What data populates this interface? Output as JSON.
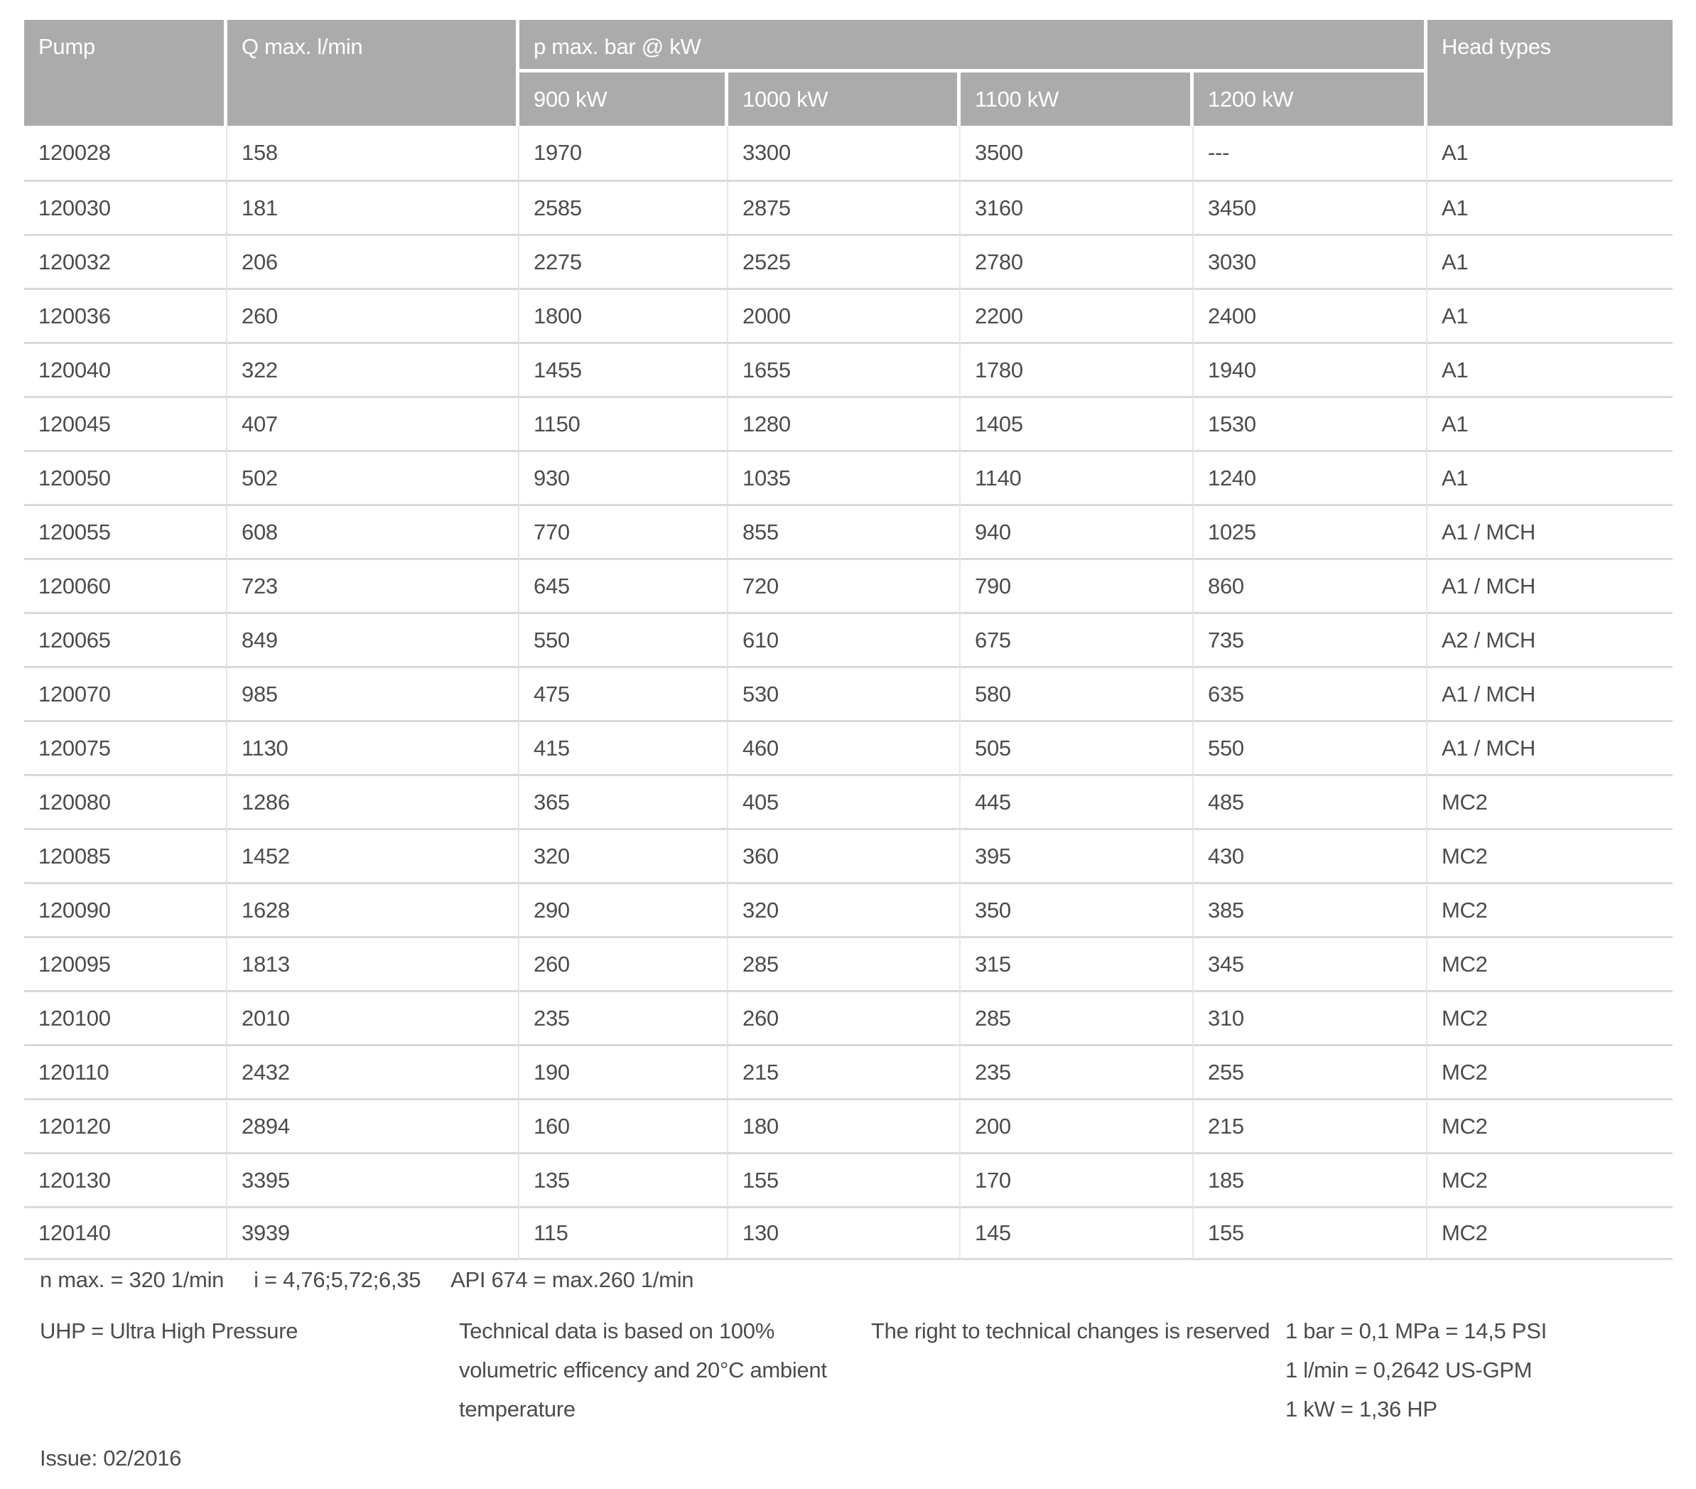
{
  "table": {
    "headers": {
      "pump": "Pump",
      "q_max": "Q max. l/min",
      "p_max_group": "p max. bar @ kW",
      "kw_columns": [
        "900 kW",
        "1000 kW",
        "1100 kW",
        "1200 kW"
      ],
      "head_types": "Head types"
    },
    "rows": [
      {
        "pump": "120028",
        "q": "158",
        "p900": "1970",
        "p1000": "3300",
        "p1100": "3500",
        "p1200": "---",
        "head": "A1"
      },
      {
        "pump": "120030",
        "q": "181",
        "p900": "2585",
        "p1000": "2875",
        "p1100": "3160",
        "p1200": "3450",
        "head": "A1"
      },
      {
        "pump": "120032",
        "q": "206",
        "p900": "2275",
        "p1000": "2525",
        "p1100": "2780",
        "p1200": "3030",
        "head": "A1"
      },
      {
        "pump": "120036",
        "q": "260",
        "p900": "1800",
        "p1000": "2000",
        "p1100": "2200",
        "p1200": "2400",
        "head": "A1"
      },
      {
        "pump": "120040",
        "q": "322",
        "p900": "1455",
        "p1000": "1655",
        "p1100": "1780",
        "p1200": "1940",
        "head": "A1"
      },
      {
        "pump": "120045",
        "q": "407",
        "p900": "1150",
        "p1000": "1280",
        "p1100": "1405",
        "p1200": "1530",
        "head": "A1"
      },
      {
        "pump": "120050",
        "q": "502",
        "p900": "930",
        "p1000": "1035",
        "p1100": "1140",
        "p1200": "1240",
        "head": "A1"
      },
      {
        "pump": "120055",
        "q": "608",
        "p900": "770",
        "p1000": "855",
        "p1100": "940",
        "p1200": "1025",
        "head": "A1 / MCH"
      },
      {
        "pump": "120060",
        "q": "723",
        "p900": "645",
        "p1000": "720",
        "p1100": "790",
        "p1200": "860",
        "head": "A1 / MCH"
      },
      {
        "pump": "120065",
        "q": "849",
        "p900": "550",
        "p1000": "610",
        "p1100": "675",
        "p1200": "735",
        "head": "A2 / MCH"
      },
      {
        "pump": "120070",
        "q": "985",
        "p900": "475",
        "p1000": "530",
        "p1100": "580",
        "p1200": "635",
        "head": "A1 / MCH"
      },
      {
        "pump": "120075",
        "q": "1130",
        "p900": "415",
        "p1000": "460",
        "p1100": "505",
        "p1200": "550",
        "head": "A1 / MCH"
      },
      {
        "pump": "120080",
        "q": "1286",
        "p900": "365",
        "p1000": "405",
        "p1100": "445",
        "p1200": "485",
        "head": "MC2"
      },
      {
        "pump": "120085",
        "q": "1452",
        "p900": "320",
        "p1000": "360",
        "p1100": "395",
        "p1200": "430",
        "head": "MC2"
      },
      {
        "pump": "120090",
        "q": "1628",
        "p900": "290",
        "p1000": "320",
        "p1100": "350",
        "p1200": "385",
        "head": "MC2"
      },
      {
        "pump": "120095",
        "q": "1813",
        "p900": "260",
        "p1000": "285",
        "p1100": "315",
        "p1200": "345",
        "head": "MC2"
      },
      {
        "pump": "120100",
        "q": "2010",
        "p900": "235",
        "p1000": "260",
        "p1100": "285",
        "p1200": "310",
        "head": "MC2"
      },
      {
        "pump": "120110",
        "q": "2432",
        "p900": "190",
        "p1000": "215",
        "p1100": "235",
        "p1200": "255",
        "head": "MC2"
      },
      {
        "pump": "120120",
        "q": "2894",
        "p900": "160",
        "p1000": "180",
        "p1100": "200",
        "p1200": "215",
        "head": "MC2"
      },
      {
        "pump": "120130",
        "q": "3395",
        "p900": "135",
        "p1000": "155",
        "p1100": "170",
        "p1200": "185",
        "head": "MC2"
      },
      {
        "pump": "120140",
        "q": "3939",
        "p900": "115",
        "p1000": "130",
        "p1100": "145",
        "p1200": "155",
        "head": "MC2"
      }
    ]
  },
  "footnotes": {
    "n_max": "n max. = 320 1/min",
    "i_ratio": "i = 4,76;5,72;6,35",
    "api": "API 674 = max.260 1/min",
    "uhp": "UHP = Ultra High Pressure",
    "technical_lines": [
      "Technical data is based on 100%",
      "volumetric efficency and 20°C ambient",
      "temperature"
    ],
    "rights": "The right to technical changes is reserved",
    "conversions": [
      "1 bar = 0,1 MPa = 14,5 PSI",
      "1 l/min = 0,2642 US-GPM",
      "1 kW = 1,36 HP"
    ],
    "issue": "Issue: 02/2016"
  },
  "colors": {
    "header_bg": "#ababab",
    "header_text": "#ffffff",
    "body_text": "#4c4c4c",
    "row_line": "#d9d9d9",
    "col_line": "#e7e7e7"
  }
}
